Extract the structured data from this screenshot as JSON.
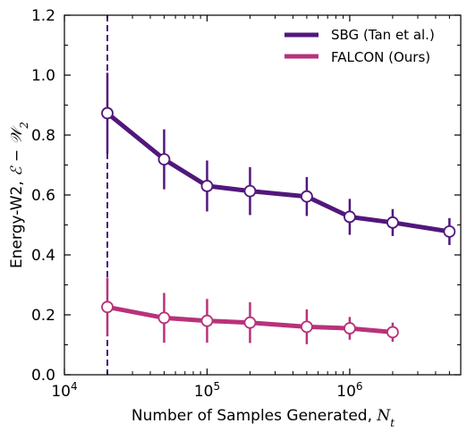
{
  "chart_data": {
    "type": "line",
    "xscale": "log",
    "xlim": [
      10000,
      6000000
    ],
    "ylim": [
      0,
      1.2
    ],
    "grid": false,
    "legend_position": "top-right",
    "xlabel": "Number of Samples Generated, ",
    "xlabel_math": "N",
    "xlabel_math_sub": "t",
    "ylabel": "Energy-W2, ",
    "ylabel_math": "ℰ − 𝒲",
    "ylabel_math_sub": "2",
    "x_tick_labels": [
      {
        "base": "10",
        "exp": "4"
      },
      {
        "base": "10",
        "exp": "5"
      },
      {
        "base": "10",
        "exp": "6"
      }
    ],
    "y_tick_labels": [
      "0.0",
      "0.2",
      "0.4",
      "0.6",
      "0.8",
      "1.0",
      "1.2"
    ],
    "vertical_reference_line": {
      "x": 20000,
      "color": "#4b1a7a",
      "style": "dashed"
    },
    "series": [
      {
        "name": "SBG (Tan et al.)",
        "color": "#52177c",
        "x": [
          20000,
          50000,
          100000,
          200000,
          500000,
          1000000,
          2000000,
          5000000
        ],
        "y": [
          0.873,
          0.719,
          0.63,
          0.613,
          0.595,
          0.527,
          0.508,
          0.478
        ],
        "err": [
          0.135,
          0.1,
          0.085,
          0.08,
          0.065,
          0.06,
          0.045,
          0.045
        ]
      },
      {
        "name": "FALCON (Ours)",
        "color": "#b8327a",
        "x": [
          20000,
          50000,
          100000,
          200000,
          500000,
          1000000,
          2000000
        ],
        "y": [
          0.226,
          0.19,
          0.18,
          0.174,
          0.16,
          0.155,
          0.142
        ],
        "err": [
          0.098,
          0.083,
          0.073,
          0.068,
          0.058,
          0.038,
          0.032
        ]
      }
    ]
  }
}
